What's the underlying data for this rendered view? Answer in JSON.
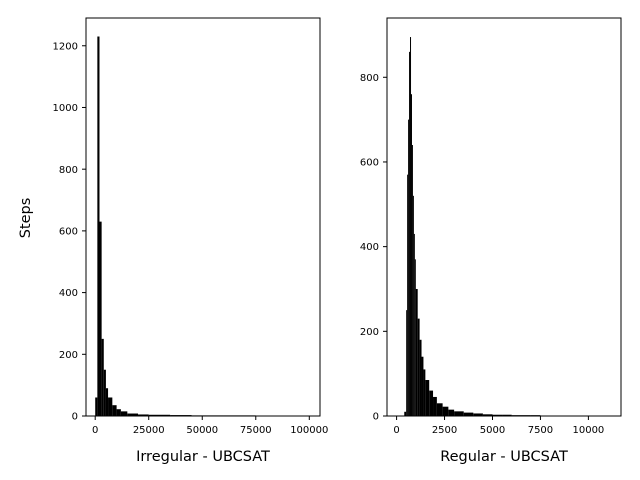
{
  "figure": {
    "ylabel": "Steps"
  },
  "chart_data": [
    {
      "type": "bar",
      "title": "",
      "xlabel": "Irregular - UBCSAT",
      "ylabel": "Steps",
      "xlim": [
        -4300,
        105000
      ],
      "ylim": [
        0,
        1290
      ],
      "xticks": [
        0,
        25000,
        50000,
        75000,
        100000
      ],
      "xtick_labels": [
        "0",
        "25000",
        "50000",
        "75000",
        "100000"
      ],
      "yticks": [
        0,
        200,
        400,
        600,
        800,
        1000,
        1200
      ],
      "ytick_labels": [
        "0",
        "200",
        "400",
        "600",
        "800",
        "1000",
        "1200"
      ],
      "color": "#000000",
      "bins": {
        "x": [
          0,
          1000,
          2000,
          3000,
          4000,
          5000,
          6000,
          8000,
          10000,
          12000,
          15000,
          20000,
          25000,
          35000,
          45000,
          60000,
          75000,
          90000,
          100000
        ],
        "values": [
          60,
          1230,
          630,
          250,
          150,
          90,
          60,
          35,
          22,
          15,
          8,
          5,
          4,
          3,
          2,
          2,
          1,
          1,
          1
        ]
      }
    },
    {
      "type": "bar",
      "title": "",
      "xlabel": "Regular - UBCSAT",
      "ylabel": "",
      "xlim": [
        -500,
        11700
      ],
      "ylim": [
        0,
        940
      ],
      "xticks": [
        0,
        2500,
        5000,
        7500,
        10000
      ],
      "xtick_labels": [
        "0",
        "2500",
        "5000",
        "7500",
        "10000"
      ],
      "yticks": [
        0,
        200,
        400,
        600,
        800
      ],
      "ytick_labels": [
        "0",
        "200",
        "400",
        "600",
        "800"
      ],
      "color": "#000000",
      "bins": {
        "x": [
          400,
          500,
          550,
          600,
          650,
          700,
          750,
          800,
          850,
          900,
          950,
          1000,
          1100,
          1200,
          1300,
          1400,
          1500,
          1700,
          1900,
          2100,
          2400,
          2700,
          3000,
          3500,
          4000,
          4500,
          5000,
          5500,
          6000,
          7000,
          7500,
          8000,
          11000
        ],
        "values": [
          10,
          250,
          570,
          700,
          860,
          895,
          760,
          640,
          520,
          430,
          370,
          300,
          230,
          180,
          140,
          110,
          85,
          60,
          45,
          30,
          22,
          15,
          11,
          8,
          6,
          4,
          3,
          3,
          2,
          2,
          1,
          1,
          1
        ]
      }
    }
  ]
}
